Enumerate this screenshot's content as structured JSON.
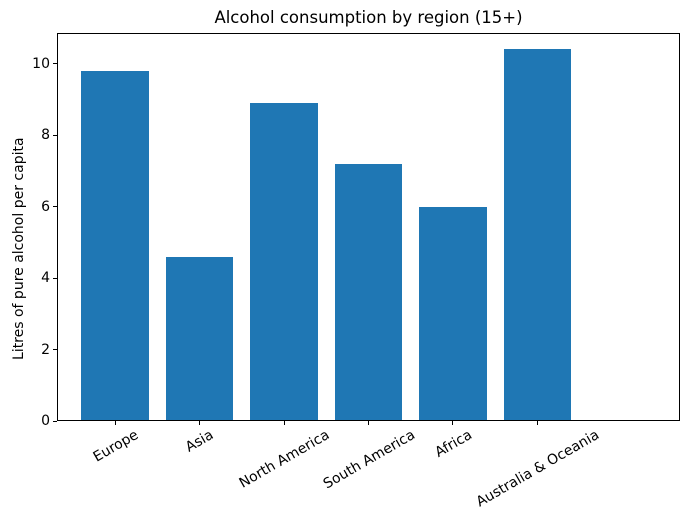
{
  "chart_data": {
    "type": "bar",
    "title": "Alcohol consumption by region (15+)",
    "xlabel": "",
    "ylabel": "Litres of pure alcohol per capita",
    "categories": [
      "Europe",
      "Asia",
      "North America",
      "South America",
      "Africa",
      "Australia & Oceania"
    ],
    "values": [
      9.8,
      4.6,
      8.9,
      7.2,
      6.0,
      10.4
    ],
    "yticks": [
      0,
      2,
      4,
      6,
      8,
      10
    ],
    "ylim": [
      0,
      10.86
    ],
    "xtick_rotation_deg": 30,
    "bar_color": "#1f77b4",
    "axes_color": "#000000",
    "background_color": "#ffffff",
    "grid": false,
    "legend": "none"
  }
}
